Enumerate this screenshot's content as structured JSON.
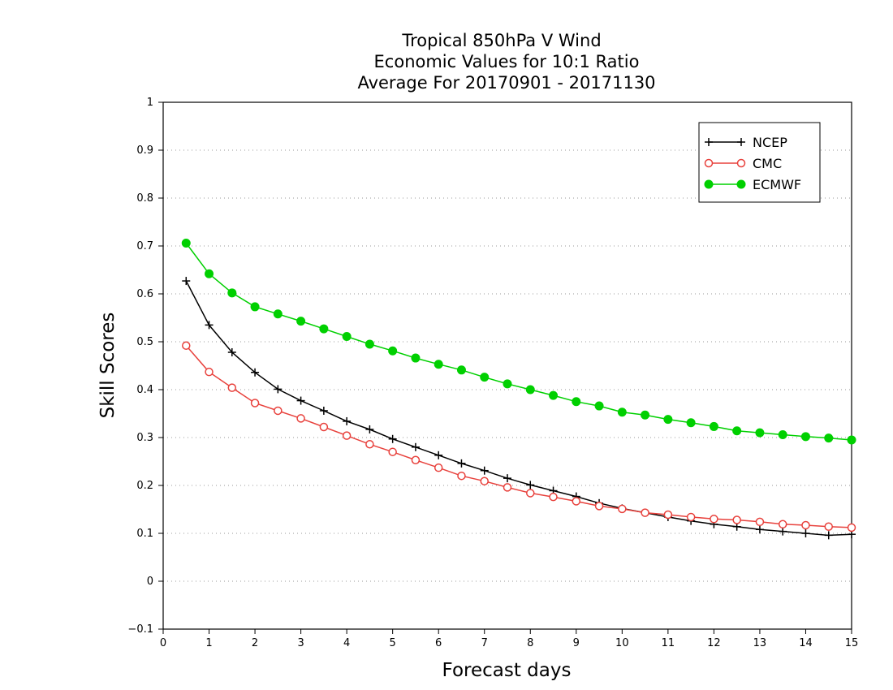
{
  "chart_data": {
    "type": "line",
    "title": [
      "Tropical 850hPa V Wind",
      "Economic Values for 10:1 Ratio",
      "Average For 20170901 - 20171130"
    ],
    "xlabel": "Forecast days",
    "ylabel": "Skill Scores",
    "xlim": [
      0,
      15
    ],
    "ylim": [
      -0.1,
      1
    ],
    "xticks": [
      "0",
      "1",
      "2",
      "3",
      "4",
      "5",
      "6",
      "7",
      "8",
      "9",
      "10",
      "11",
      "12",
      "13",
      "14",
      "15"
    ],
    "yticks": [
      "−0.1",
      "0",
      "0.1",
      "0.2",
      "0.3",
      "0.4",
      "0.5",
      "0.6",
      "0.7",
      "0.8",
      "0.9",
      "1"
    ],
    "grid": "dotted horizontal",
    "legend_position": "top-right",
    "x": [
      0.5,
      1,
      1.5,
      2,
      2.5,
      3,
      3.5,
      4,
      4.5,
      5,
      5.5,
      6,
      6.5,
      7,
      7.5,
      8,
      8.5,
      9,
      9.5,
      10,
      10.5,
      11,
      11.5,
      12,
      12.5,
      13,
      13.5,
      14,
      14.5,
      15
    ],
    "series": [
      {
        "name": "NCEP",
        "color": "#000000",
        "marker": "plus",
        "values": [
          0.627,
          0.535,
          0.478,
          0.436,
          0.401,
          0.377,
          0.356,
          0.334,
          0.317,
          0.297,
          0.28,
          0.263,
          0.246,
          0.231,
          0.215,
          0.201,
          0.189,
          0.177,
          0.163,
          0.152,
          0.143,
          0.134,
          0.126,
          0.119,
          0.114,
          0.108,
          0.104,
          0.1,
          0.096,
          0.098
        ]
      },
      {
        "name": "CMC",
        "color": "#e8413c",
        "marker": "open-circle",
        "values": [
          0.492,
          0.437,
          0.404,
          0.372,
          0.356,
          0.34,
          0.322,
          0.304,
          0.286,
          0.27,
          0.253,
          0.237,
          0.22,
          0.209,
          0.196,
          0.184,
          0.176,
          0.167,
          0.157,
          0.151,
          0.143,
          0.139,
          0.134,
          0.13,
          0.128,
          0.124,
          0.119,
          0.117,
          0.114,
          0.112
        ]
      },
      {
        "name": "ECMWF",
        "color": "#00d000",
        "marker": "filled-circle",
        "values": [
          0.706,
          0.642,
          0.602,
          0.573,
          0.558,
          0.543,
          0.527,
          0.511,
          0.495,
          0.481,
          0.466,
          0.453,
          0.441,
          0.426,
          0.412,
          0.4,
          0.388,
          0.375,
          0.366,
          0.353,
          0.347,
          0.338,
          0.331,
          0.323,
          0.314,
          0.31,
          0.306,
          0.302,
          0.299,
          0.295
        ]
      }
    ]
  }
}
